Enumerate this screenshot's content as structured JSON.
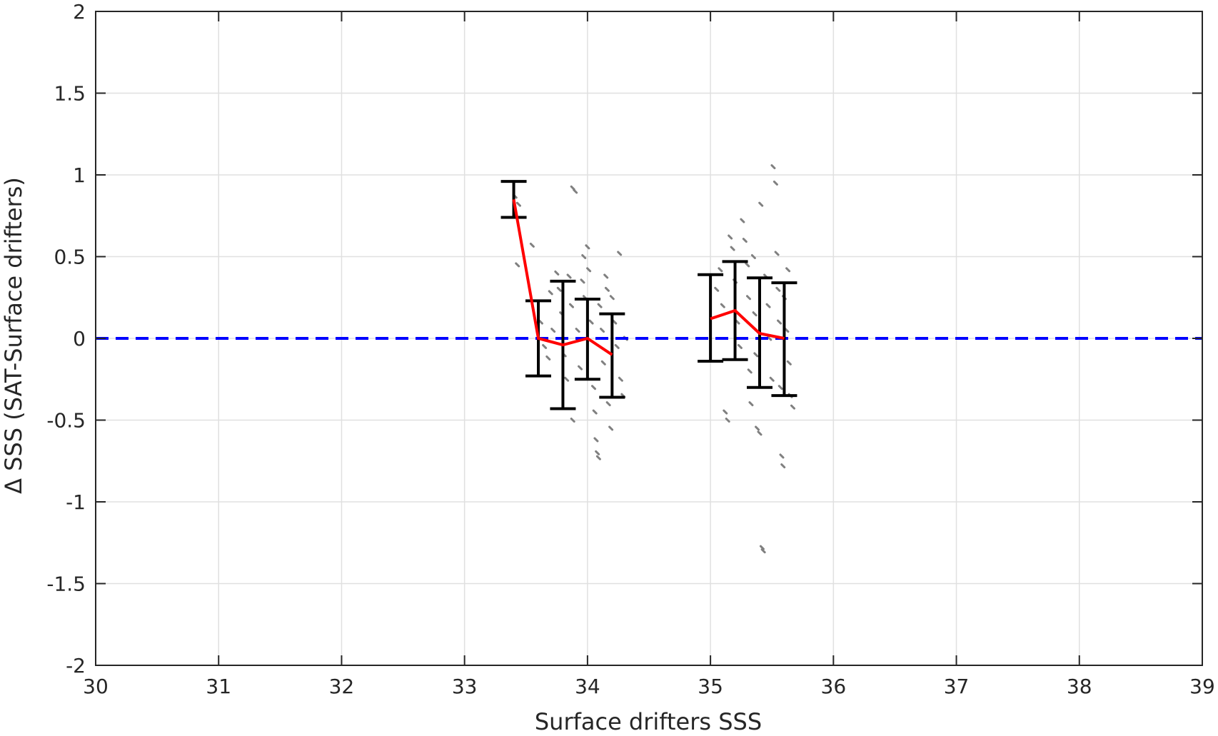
{
  "chart_data": {
    "type": "scatter",
    "xlabel": "Surface drifters SSS",
    "ylabel": "Δ SSS (SAT-Surface drifters)",
    "xlim": [
      30,
      39
    ],
    "ylim": [
      -2,
      2
    ],
    "xticks": [
      "30",
      "31",
      "32",
      "33",
      "34",
      "35",
      "36",
      "37",
      "38",
      "39"
    ],
    "yticks": [
      "-2",
      "-1.5",
      "-1",
      "-0.5",
      "0",
      "0.5",
      "1",
      "1.5",
      "2"
    ],
    "grid": true,
    "colors": {
      "scatter": "#808080",
      "mean_line": "#ff0000",
      "zero_line": "#0000ff",
      "error_bars": "#000000",
      "grid": "#e0e0e0",
      "axes": "#262626"
    },
    "zero_line": {
      "y": 0,
      "style": "dashed"
    },
    "bins": [
      {
        "x": 33.4,
        "mean": 0.85,
        "low": 0.74,
        "high": 0.96
      },
      {
        "x": 33.6,
        "mean": 0.0,
        "low": -0.23,
        "high": 0.23
      },
      {
        "x": 33.8,
        "mean": -0.04,
        "low": -0.43,
        "high": 0.35
      },
      {
        "x": 34.0,
        "mean": 0.0,
        "low": -0.25,
        "high": 0.24
      },
      {
        "x": 34.2,
        "mean": -0.1,
        "low": -0.36,
        "high": 0.15
      },
      {
        "x": 35.0,
        "mean": 0.12,
        "low": -0.14,
        "high": 0.39
      },
      {
        "x": 35.2,
        "mean": 0.17,
        "low": -0.13,
        "high": 0.47
      },
      {
        "x": 35.4,
        "mean": 0.03,
        "low": -0.3,
        "high": 0.37
      },
      {
        "x": 35.6,
        "mean": 0.0,
        "low": -0.35,
        "high": 0.34
      }
    ],
    "scatter_points": [
      [
        33.41,
        0.87
      ],
      [
        33.44,
        0.82
      ],
      [
        33.43,
        0.45
      ],
      [
        33.55,
        0.57
      ],
      [
        33.62,
        0.1
      ],
      [
        33.65,
        -0.05
      ],
      [
        33.68,
        -0.12
      ],
      [
        33.7,
        0.28
      ],
      [
        33.72,
        0.05
      ],
      [
        33.75,
        0.4
      ],
      [
        33.77,
        0.3
      ],
      [
        33.79,
        0.15
      ],
      [
        33.81,
        -0.1
      ],
      [
        33.83,
        -0.25
      ],
      [
        33.85,
        0.38
      ],
      [
        33.87,
        0.2
      ],
      [
        33.88,
        0.92
      ],
      [
        33.9,
        0.9
      ],
      [
        33.88,
        -0.5
      ],
      [
        33.92,
        0.05
      ],
      [
        33.94,
        -0.18
      ],
      [
        33.96,
        0.35
      ],
      [
        33.97,
        0.5
      ],
      [
        33.98,
        0.25
      ],
      [
        34.0,
        0.56
      ],
      [
        34.01,
        0.42
      ],
      [
        34.03,
        0.1
      ],
      [
        34.05,
        -0.3
      ],
      [
        34.06,
        -0.45
      ],
      [
        34.07,
        -0.62
      ],
      [
        34.08,
        -0.7
      ],
      [
        34.09,
        -0.73
      ],
      [
        34.1,
        0.2
      ],
      [
        34.12,
        0.05
      ],
      [
        34.13,
        -0.15
      ],
      [
        34.15,
        0.38
      ],
      [
        34.16,
        0.3
      ],
      [
        34.17,
        -0.4
      ],
      [
        34.19,
        -0.55
      ],
      [
        34.2,
        0.25
      ],
      [
        34.22,
        0.1
      ],
      [
        34.24,
        -0.05
      ],
      [
        34.26,
        0.52
      ],
      [
        34.27,
        -0.25
      ],
      [
        34.29,
        -0.35
      ],
      [
        34.31,
        0.0
      ],
      [
        35.05,
        0.3
      ],
      [
        35.08,
        0.42
      ],
      [
        35.1,
        0.2
      ],
      [
        35.12,
        -0.45
      ],
      [
        35.14,
        -0.5
      ],
      [
        35.16,
        0.62
      ],
      [
        35.18,
        0.55
      ],
      [
        35.2,
        0.35
      ],
      [
        35.22,
        0.1
      ],
      [
        35.24,
        -0.05
      ],
      [
        35.26,
        0.72
      ],
      [
        35.28,
        0.6
      ],
      [
        35.3,
        0.45
      ],
      [
        35.31,
        0.25
      ],
      [
        35.32,
        -0.2
      ],
      [
        35.33,
        -0.4
      ],
      [
        35.35,
        0.5
      ],
      [
        35.36,
        0.15
      ],
      [
        35.37,
        -0.1
      ],
      [
        35.38,
        -0.55
      ],
      [
        35.4,
        -0.58
      ],
      [
        35.41,
        0.82
      ],
      [
        35.42,
        -1.28
      ],
      [
        35.43,
        -1.3
      ],
      [
        35.45,
        0.38
      ],
      [
        35.47,
        0.2
      ],
      [
        35.48,
        0.0
      ],
      [
        35.5,
        -0.25
      ],
      [
        35.51,
        1.05
      ],
      [
        35.53,
        0.95
      ],
      [
        35.54,
        0.52
      ],
      [
        35.55,
        0.3
      ],
      [
        35.56,
        0.1
      ],
      [
        35.57,
        -0.3
      ],
      [
        35.58,
        -0.72
      ],
      [
        35.59,
        -0.78
      ],
      [
        35.6,
        0.25
      ],
      [
        35.62,
        0.05
      ],
      [
        35.64,
        -0.15
      ],
      [
        35.65,
        -0.35
      ],
      [
        35.67,
        -0.42
      ],
      [
        35.63,
        0.42
      ]
    ]
  }
}
